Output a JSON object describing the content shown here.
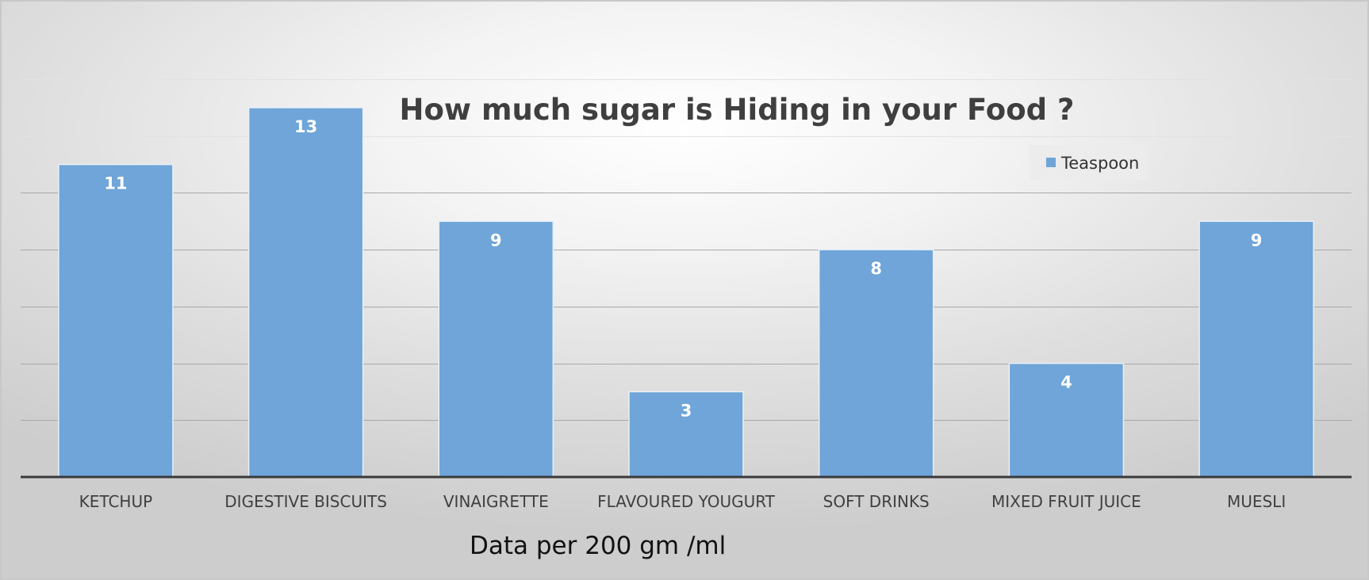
{
  "chart_data": {
    "type": "bar",
    "title": "How much sugar is Hiding in your Food ?",
    "note": "Data per 200 gm /ml",
    "xlabel": "",
    "ylabel": "",
    "categories": [
      "KETCHUP",
      "DIGESTIVE BISCUITS",
      "VINAIGRETTE",
      "FLAVOURED YOUGURT",
      "SOFT DRINKS",
      "MIXED FRUIT JUICE",
      "MUESLI"
    ],
    "series": [
      {
        "name": "Teaspoon",
        "values": [
          11,
          13,
          9,
          3,
          8,
          4,
          9
        ],
        "color": "#6fa5d8"
      }
    ],
    "ylim": [
      0,
      14
    ],
    "y_gridline_step": 2,
    "y_tick_labels_shown": false,
    "data_labels": true,
    "grid": true,
    "legend": "top-right"
  }
}
